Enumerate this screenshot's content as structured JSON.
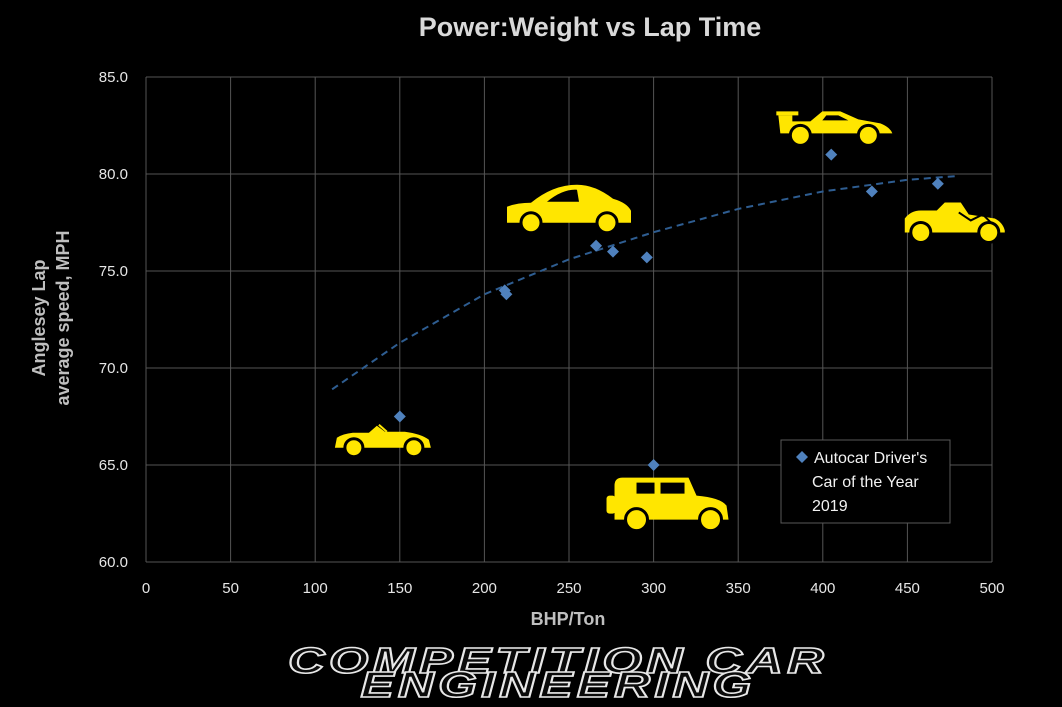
{
  "chart_data": {
    "type": "scatter",
    "title": "Power:Weight vs Lap Time",
    "xlabel": "BHP/Ton",
    "ylabel_lines": [
      "Anglesey Lap",
      "average speed, MPH"
    ],
    "xlim": [
      0,
      500
    ],
    "ylim": [
      60,
      85
    ],
    "x_ticks": [
      "0",
      "50",
      "100",
      "150",
      "200",
      "250",
      "300",
      "350",
      "400",
      "450",
      "500"
    ],
    "y_ticks": [
      "60.0",
      "65.0",
      "70.0",
      "75.0",
      "80.0",
      "85.0"
    ],
    "grid": true,
    "series": [
      {
        "name": "Autocar Driver's Car of the Year 2019",
        "color": "#4f81bd",
        "marker": "diamond",
        "points": [
          {
            "x": 150,
            "y": 67.5
          },
          {
            "x": 212,
            "y": 74.0
          },
          {
            "x": 213,
            "y": 73.8
          },
          {
            "x": 266,
            "y": 76.3
          },
          {
            "x": 276,
            "y": 76.0
          },
          {
            "x": 296,
            "y": 75.7
          },
          {
            "x": 300,
            "y": 65.0
          },
          {
            "x": 405,
            "y": 81.0
          },
          {
            "x": 429,
            "y": 79.1
          },
          {
            "x": 468,
            "y": 79.5
          }
        ]
      }
    ],
    "trendline": {
      "style": "dashed",
      "color": "#2e5d91",
      "points": [
        {
          "x": 110,
          "y": 68.9
        },
        {
          "x": 150,
          "y": 71.3
        },
        {
          "x": 200,
          "y": 73.8
        },
        {
          "x": 250,
          "y": 75.6
        },
        {
          "x": 300,
          "y": 77.0
        },
        {
          "x": 350,
          "y": 78.2
        },
        {
          "x": 400,
          "y": 79.1
        },
        {
          "x": 450,
          "y": 79.7
        },
        {
          "x": 480,
          "y": 79.9
        }
      ]
    },
    "legend": {
      "placement": "bottom-right",
      "lines": [
        "Autocar Driver's",
        "Car of the Year",
        "2019"
      ]
    },
    "car_icons": [
      {
        "kind": "roadster-icon",
        "x": 140,
        "y": 66.2
      },
      {
        "kind": "coupe-icon",
        "x": 250,
        "y": 77.9
      },
      {
        "kind": "suv-icon",
        "x": 310,
        "y": 62.7
      },
      {
        "kind": "hypercar-icon",
        "x": 408,
        "y": 82.3
      },
      {
        "kind": "track-car-icon",
        "x": 478,
        "y": 77.4
      }
    ]
  },
  "footer": {
    "logo_lines": [
      "COMPETITION CAR",
      "ENGINEERING"
    ]
  },
  "colors": {
    "background": "#000000",
    "marker": "#4f81bd",
    "car_silhouette": "#ffe600"
  }
}
